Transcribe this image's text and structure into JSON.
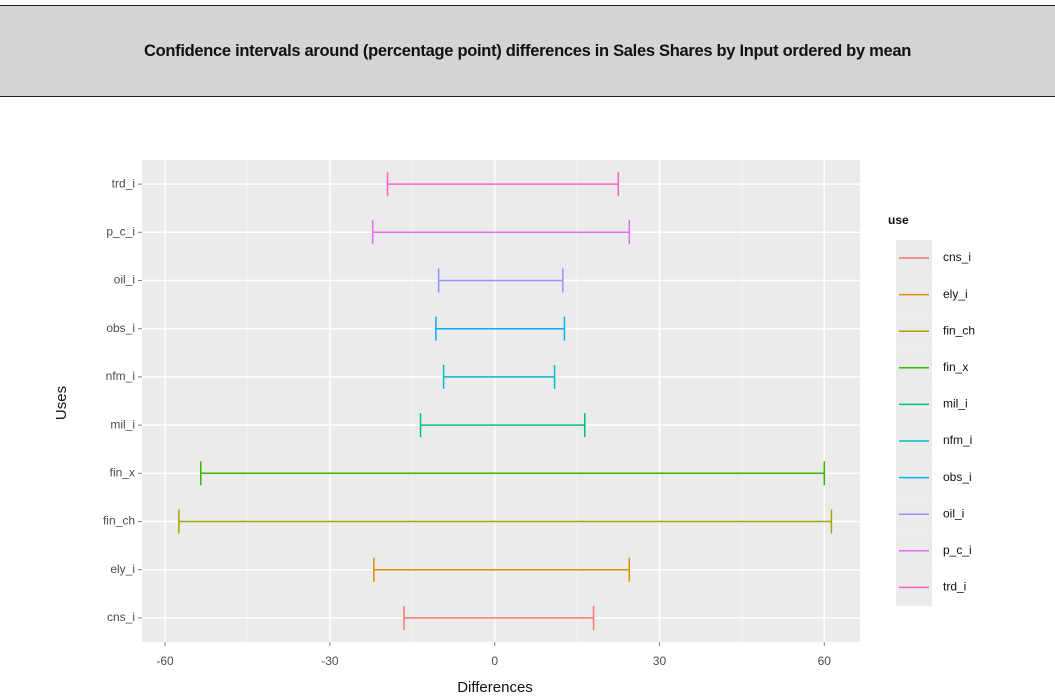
{
  "chart_data": {
    "type": "errorbar",
    "title": "Confidence intervals around (percentage point) differences in Sales Shares by Input ordered by mean",
    "x_label": "Differences",
    "y_label": "Uses",
    "legend_title": "use",
    "xlim": [
      -64.2,
      66.5
    ],
    "xticks": [
      -60,
      -30,
      0,
      30,
      60
    ],
    "xminor": [
      -45,
      -15,
      15,
      45
    ],
    "grid": true,
    "series": [
      {
        "name": "cns_i",
        "color": "#F8766D",
        "values": [
          -16.5,
          18.0
        ]
      },
      {
        "name": "ely_i",
        "color": "#D89000",
        "values": [
          -22.0,
          24.5
        ]
      },
      {
        "name": "fin_ch",
        "color": "#A3A500",
        "values": [
          -57.5,
          61.3
        ]
      },
      {
        "name": "fin_x",
        "color": "#39B600",
        "values": [
          -53.5,
          60.0
        ]
      },
      {
        "name": "mil_i",
        "color": "#00BF7D",
        "values": [
          -13.5,
          16.4
        ]
      },
      {
        "name": "nfm_i",
        "color": "#00BFC4",
        "values": [
          -9.3,
          10.9
        ]
      },
      {
        "name": "obs_i",
        "color": "#00B0F6",
        "values": [
          -10.7,
          12.7
        ]
      },
      {
        "name": "oil_i",
        "color": "#9590FF",
        "values": [
          -10.2,
          12.4
        ]
      },
      {
        "name": "p_c_i",
        "color": "#E76BF3",
        "values": [
          -22.2,
          24.5
        ]
      },
      {
        "name": "trd_i",
        "color": "#FF62BC",
        "values": [
          -19.5,
          22.5
        ]
      }
    ]
  }
}
